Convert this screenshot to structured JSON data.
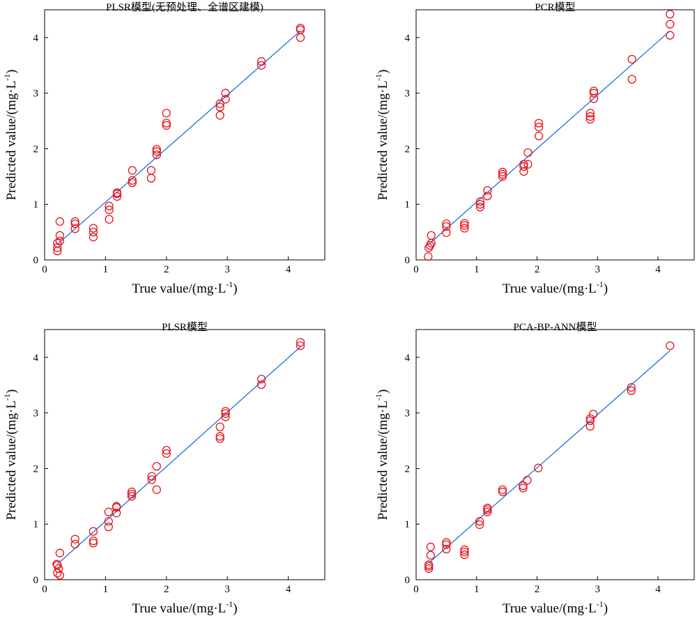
{
  "colors": {
    "points": "#e8131b",
    "fit_line": "#1f6fd8",
    "axes": "#000000"
  },
  "chart_data": [
    {
      "type": "scatter",
      "title": "PLSR模型(无预处理、全谱区建模)",
      "xlabel": {
        "text": "True value/(mg·L",
        "sup": "-1",
        "suffix": ")"
      },
      "ylabel": {
        "text": "Predicted value/(mg·L",
        "sup": "-1",
        "suffix": ")"
      },
      "xlim": [
        0,
        4.6
      ],
      "ylim": [
        0,
        4.5
      ],
      "xticks": [
        0,
        1,
        2,
        3,
        4
      ],
      "yticks": [
        0,
        1,
        2,
        3,
        4
      ],
      "fit_line": [
        [
          0.21,
          0.28
        ],
        [
          4.2,
          4.12
        ]
      ],
      "x": [
        0.21,
        0.21,
        0.21,
        0.25,
        0.25,
        0.25,
        0.5,
        0.5,
        0.5,
        0.8,
        0.8,
        0.8,
        1.06,
        1.06,
        1.06,
        1.19,
        1.19,
        1.19,
        1.44,
        1.44,
        1.44,
        1.75,
        1.75,
        1.84,
        1.84,
        1.84,
        2.0,
        2.0,
        2.0,
        2.88,
        2.88,
        2.88,
        2.97,
        2.97,
        3.56,
        3.56,
        4.2,
        4.2,
        4.2
      ],
      "y": [
        0.3,
        0.22,
        0.16,
        0.69,
        0.44,
        0.34,
        0.69,
        0.65,
        0.56,
        0.57,
        0.5,
        0.41,
        0.97,
        0.9,
        0.73,
        1.21,
        1.19,
        1.14,
        1.61,
        1.43,
        1.39,
        1.61,
        1.47,
        1.99,
        1.95,
        1.89,
        2.64,
        2.46,
        2.42,
        2.81,
        2.75,
        2.6,
        3.0,
        2.89,
        3.57,
        3.5,
        4.17,
        4.14,
        4.0
      ]
    },
    {
      "type": "scatter",
      "title": "PCR模型",
      "xlabel": {
        "text": "True value/(mg·L",
        "sup": "-1",
        "suffix": ")"
      },
      "ylabel": {
        "text": "Predicted value/(mg·L",
        "sup": "-1",
        "suffix": ")"
      },
      "xlim": [
        0,
        4.6
      ],
      "ylim": [
        0,
        4.5
      ],
      "xticks": [
        0,
        1,
        2,
        3,
        4
      ],
      "yticks": [
        0,
        1,
        2,
        3,
        4
      ],
      "fit_line": [
        [
          0.21,
          0.28
        ],
        [
          4.2,
          4.12
        ]
      ],
      "x": [
        0.2,
        0.21,
        0.23,
        0.25,
        0.25,
        0.5,
        0.5,
        0.5,
        0.8,
        0.8,
        0.8,
        1.06,
        1.06,
        1.06,
        1.18,
        1.18,
        1.43,
        1.43,
        1.43,
        1.78,
        1.78,
        1.78,
        1.85,
        1.85,
        2.03,
        2.03,
        2.03,
        2.88,
        2.88,
        2.88,
        2.94,
        2.94,
        2.94,
        3.57,
        3.57,
        4.2,
        4.2,
        4.2
      ],
      "y": [
        0.06,
        0.22,
        0.26,
        0.44,
        0.3,
        0.65,
        0.6,
        0.49,
        0.66,
        0.62,
        0.57,
        1.05,
        1.0,
        0.95,
        1.25,
        1.15,
        1.58,
        1.54,
        1.5,
        1.72,
        1.68,
        1.59,
        1.93,
        1.72,
        2.46,
        2.39,
        2.23,
        2.64,
        2.58,
        2.53,
        3.04,
        3.0,
        2.9,
        3.61,
        3.25,
        4.42,
        4.24,
        4.04
      ]
    },
    {
      "type": "scatter",
      "title": "PLSR模型",
      "xlabel": {
        "text": "True value/(mg·L",
        "sup": "-1",
        "suffix": ")"
      },
      "ylabel": {
        "text": "Predicted value/(mg·L",
        "sup": "-1",
        "suffix": ")"
      },
      "xlim": [
        0,
        4.6
      ],
      "ylim": [
        0,
        4.5
      ],
      "xticks": [
        0,
        1,
        2,
        3,
        4
      ],
      "yticks": [
        0,
        1,
        2,
        3,
        4
      ],
      "fit_line": [
        [
          0.21,
          0.28
        ],
        [
          4.2,
          4.19
        ]
      ],
      "x": [
        0.2,
        0.21,
        0.21,
        0.23,
        0.25,
        0.25,
        0.5,
        0.5,
        0.8,
        0.8,
        0.8,
        1.05,
        1.05,
        1.05,
        1.18,
        1.18,
        1.18,
        1.43,
        1.43,
        1.43,
        1.76,
        1.76,
        1.84,
        1.84,
        2.0,
        2.0,
        2.88,
        2.88,
        2.88,
        2.97,
        2.97,
        2.97,
        3.56,
        3.56,
        4.2,
        4.2
      ],
      "y": [
        0.28,
        0.26,
        0.12,
        0.2,
        0.48,
        0.08,
        0.73,
        0.64,
        0.87,
        0.7,
        0.66,
        1.22,
        1.05,
        0.95,
        1.32,
        1.3,
        1.2,
        1.58,
        1.54,
        1.5,
        1.86,
        1.8,
        2.04,
        1.62,
        2.33,
        2.27,
        2.75,
        2.58,
        2.54,
        3.03,
        2.99,
        2.93,
        3.61,
        3.51,
        4.27,
        4.21
      ]
    },
    {
      "type": "scatter",
      "title": "PCA-BP-ANN模型",
      "xlabel": {
        "text": "True value/(mg·L",
        "sup": "-1",
        "suffix": ")"
      },
      "ylabel": {
        "text": "Predicted value/(mg·L",
        "sup": "-1",
        "suffix": ")"
      },
      "xlim": [
        0,
        4.6
      ],
      "ylim": [
        0,
        4.5
      ],
      "xticks": [
        0,
        1,
        2,
        3,
        4
      ],
      "yticks": [
        0,
        1,
        2,
        3,
        4
      ],
      "fit_line": [
        [
          0.21,
          0.3
        ],
        [
          4.2,
          4.12
        ]
      ],
      "x": [
        0.21,
        0.21,
        0.21,
        0.24,
        0.24,
        0.5,
        0.5,
        0.5,
        0.8,
        0.8,
        0.8,
        1.05,
        1.05,
        1.18,
        1.18,
        1.18,
        1.43,
        1.43,
        1.77,
        1.77,
        1.84,
        2.02,
        2.88,
        2.88,
        2.88,
        2.93,
        3.56,
        3.56,
        4.2
      ],
      "y": [
        0.27,
        0.24,
        0.2,
        0.59,
        0.44,
        0.67,
        0.63,
        0.55,
        0.54,
        0.5,
        0.45,
        1.05,
        0.99,
        1.29,
        1.26,
        1.22,
        1.62,
        1.58,
        1.69,
        1.65,
        1.79,
        2.01,
        2.9,
        2.86,
        2.76,
        2.98,
        3.46,
        3.4,
        4.21
      ]
    }
  ]
}
